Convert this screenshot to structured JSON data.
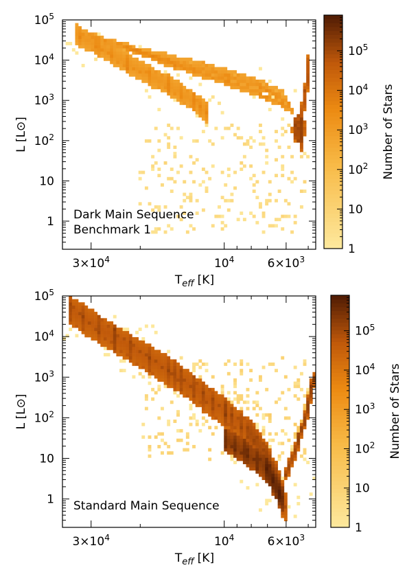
{
  "chart_data": [
    {
      "type": "heatmap",
      "panel_label": [
        "Dark Main Sequence",
        "Benchmark 1"
      ],
      "xlabel_main": "T",
      "xlabel_sub": "eff",
      "xlabel_unit": "[K]",
      "ylabel": "L [L⊙]",
      "x_scale": "log",
      "x_reversed": true,
      "xlim": [
        38000,
        4700
      ],
      "y_scale": "log",
      "ylim": [
        0.2,
        100000
      ],
      "x_ticks": [
        {
          "value": 30000,
          "mantissa": "3×10",
          "exp": "4"
        },
        {
          "value": 10000,
          "mantissa": "10",
          "exp": "4"
        },
        {
          "value": 6000,
          "mantissa": "6×10",
          "exp": "3"
        }
      ],
      "y_ticks": [
        {
          "value": 1,
          "base": "1",
          "exp": ""
        },
        {
          "value": 10,
          "base": "10",
          "exp": ""
        },
        {
          "value": 100,
          "base": "10",
          "exp": "2"
        },
        {
          "value": 1000,
          "base": "10",
          "exp": "3"
        },
        {
          "value": 10000,
          "base": "10",
          "exp": "4"
        },
        {
          "value": 100000,
          "base": "10",
          "exp": "5"
        }
      ],
      "colorbar": {
        "label": "Number of Stars",
        "scale": "log",
        "range": [
          1,
          800000
        ],
        "ticks": [
          {
            "value": 1,
            "base": "1",
            "exp": ""
          },
          {
            "value": 10,
            "base": "10",
            "exp": ""
          },
          {
            "value": 100,
            "base": "10",
            "exp": "2"
          },
          {
            "value": 1000,
            "base": "10",
            "exp": "3"
          },
          {
            "value": 10000,
            "base": "10",
            "exp": "4"
          },
          {
            "value": 100000,
            "base": "10",
            "exp": "5"
          }
        ]
      },
      "density_features": [
        {
          "name": "upper main sequence",
          "kind": "band",
          "path": [
            [
              34000,
              45000
            ],
            [
              28000,
              22000
            ],
            [
              22000,
              8000
            ],
            [
              16000,
              2500
            ],
            [
              13000,
              1000
            ],
            [
              11500,
              500
            ]
          ],
          "halfwidth_dex": 0.22,
          "count": 1500,
          "spread_dex": 0.12
        },
        {
          "name": "tracks",
          "kind": "band",
          "path": [
            [
              30000,
              40000
            ],
            [
              20000,
              18000
            ],
            [
              12000,
              8000
            ],
            [
              8000,
              3500
            ],
            [
              6200,
              1600
            ]
          ],
          "halfwidth_dex": 0.05,
          "count": 800
        },
        {
          "name": "tracks",
          "kind": "band",
          "path": [
            [
              27000,
              32000
            ],
            [
              18000,
              13000
            ],
            [
              11000,
              5500
            ],
            [
              7500,
              2500
            ],
            [
              6000,
              1100
            ]
          ],
          "halfwidth_dex": 0.05,
          "count": 800
        },
        {
          "name": "tracks",
          "kind": "band",
          "path": [
            [
              24000,
              25000
            ],
            [
              16000,
              9500
            ],
            [
              10000,
              4000
            ],
            [
              7000,
              1800
            ],
            [
              5800,
              800
            ]
          ],
          "halfwidth_dex": 0.05,
          "count": 1500
        },
        {
          "name": "tracks",
          "kind": "band",
          "path": [
            [
              22000,
              20000
            ],
            [
              15000,
              7500
            ],
            [
              10000,
              3000
            ],
            [
              7000,
              1200
            ],
            [
              5700,
              600
            ]
          ],
          "halfwidth_dex": 0.05,
          "count": 2000
        },
        {
          "name": "giant branch",
          "kind": "band",
          "path": [
            [
              5300,
              70
            ],
            [
              5350,
              200
            ],
            [
              5200,
              800
            ],
            [
              5050,
              3500
            ],
            [
              5000,
              10000
            ]
          ],
          "halfwidth_dex": 0.12,
          "count": 20000,
          "spread_dex": 0.25
        },
        {
          "name": "red giant clump",
          "kind": "blob",
          "center": [
            5400,
            200
          ],
          "sigma_dex": [
            0.02,
            0.35
          ],
          "count": 60000
        },
        {
          "name": "scatter",
          "kind": "cloud",
          "x_range": [
            20000,
            5000
          ],
          "y_range": [
            0.5,
            300
          ],
          "count": 5
        }
      ]
    },
    {
      "type": "heatmap",
      "panel_label": [
        "Standard Main Sequence"
      ],
      "xlabel_main": "T",
      "xlabel_sub": "eff",
      "xlabel_unit": "[K]",
      "ylabel": "L [L⊙]",
      "x_scale": "log",
      "x_reversed": true,
      "xlim": [
        38000,
        4700
      ],
      "y_scale": "log",
      "ylim": [
        0.2,
        100000
      ],
      "x_ticks": [
        {
          "value": 30000,
          "mantissa": "3×10",
          "exp": "4"
        },
        {
          "value": 10000,
          "mantissa": "10",
          "exp": "4"
        },
        {
          "value": 6000,
          "mantissa": "6×10",
          "exp": "3"
        }
      ],
      "y_ticks": [
        {
          "value": 1,
          "base": "1",
          "exp": ""
        },
        {
          "value": 10,
          "base": "10",
          "exp": ""
        },
        {
          "value": 100,
          "base": "10",
          "exp": "2"
        },
        {
          "value": 1000,
          "base": "10",
          "exp": "3"
        },
        {
          "value": 10000,
          "base": "10",
          "exp": "4"
        },
        {
          "value": 100000,
          "base": "10",
          "exp": "5"
        }
      ],
      "colorbar": {
        "label": "Number of Stars",
        "scale": "log",
        "range": [
          1,
          800000
        ],
        "ticks": [
          {
            "value": 1,
            "base": "1",
            "exp": ""
          },
          {
            "value": 10,
            "base": "10",
            "exp": ""
          },
          {
            "value": 100,
            "base": "10",
            "exp": "2"
          },
          {
            "value": 1000,
            "base": "10",
            "exp": "3"
          },
          {
            "value": 10000,
            "base": "10",
            "exp": "4"
          },
          {
            "value": 100000,
            "base": "10",
            "exp": "5"
          }
        ]
      },
      "density_features": [
        {
          "name": "main sequence",
          "kind": "band",
          "path": [
            [
              36000,
              50000
            ],
            [
              25000,
              10000
            ],
            [
              15000,
              1200
            ],
            [
              10000,
              150
            ],
            [
              8000,
              40
            ],
            [
              7000,
              10
            ],
            [
              6300,
              2
            ],
            [
              6100,
              0.7
            ]
          ],
          "halfwidth_dex": 0.35,
          "count": 50000,
          "spread_dex": 0.15
        },
        {
          "name": "main sequence",
          "kind": "band",
          "path": [
            [
              10000,
              30
            ],
            [
              8500,
              15
            ],
            [
              7000,
              5
            ],
            [
              6200,
              1
            ]
          ],
          "halfwidth_dex": 0.25,
          "count": 200000
        },
        {
          "name": "giant branch",
          "kind": "band",
          "path": [
            [
              6000,
              4
            ],
            [
              5400,
              30
            ],
            [
              5000,
              200
            ],
            [
              4800,
              1000
            ]
          ],
          "halfwidth_dex": 0.12,
          "count": 50000
        },
        {
          "name": "giant branch",
          "kind": "band",
          "path": [
            [
              5500,
              40
            ],
            [
              5200,
              100
            ],
            [
              5000,
              400
            ]
          ],
          "halfwidth_dex": 0.06,
          "count": 40
        },
        {
          "name": "scatter",
          "kind": "cloud",
          "x_range": [
            20000,
            5000
          ],
          "y_range": [
            10,
            3000
          ],
          "count": 10
        }
      ]
    }
  ]
}
